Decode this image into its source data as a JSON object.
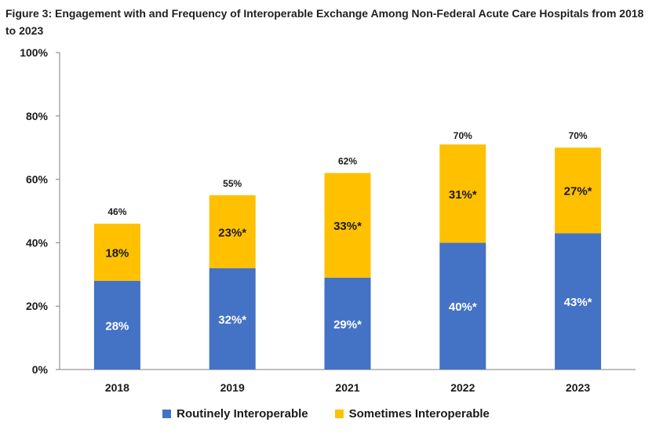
{
  "figure": {
    "title": "Figure 3: Engagement with and Frequency of Interoperable Exchange Among Non-Federal Acute Care Hospitals from 2018 to 2023"
  },
  "chart_data": {
    "type": "bar",
    "stacked": true,
    "categories": [
      "2018",
      "2019",
      "2021",
      "2022",
      "2023"
    ],
    "series": [
      {
        "name": "Routinely Interoperable",
        "color": "#4472C4",
        "values": [
          28,
          32,
          29,
          40,
          43
        ],
        "labels": [
          "28%",
          "32%*",
          "29%*",
          "40%*",
          "43%*"
        ]
      },
      {
        "name": "Sometimes Interoperable",
        "color": "#FFC000",
        "values": [
          18,
          23,
          33,
          31,
          27
        ],
        "labels": [
          "18%",
          "23%*",
          "33%*",
          "31%*",
          "27%*"
        ]
      }
    ],
    "totals": [
      46,
      55,
      62,
      70,
      70
    ],
    "total_labels": [
      "46%",
      "55%",
      "62%",
      "70%",
      "70%"
    ],
    "ylim": [
      0,
      100
    ],
    "yticks": [
      0,
      20,
      40,
      60,
      80,
      100
    ],
    "ytick_labels": [
      "0%",
      "20%",
      "40%",
      "60%",
      "80%",
      "100%"
    ],
    "xlabel": "",
    "ylabel": "",
    "grid": false,
    "legend_position": "bottom"
  }
}
